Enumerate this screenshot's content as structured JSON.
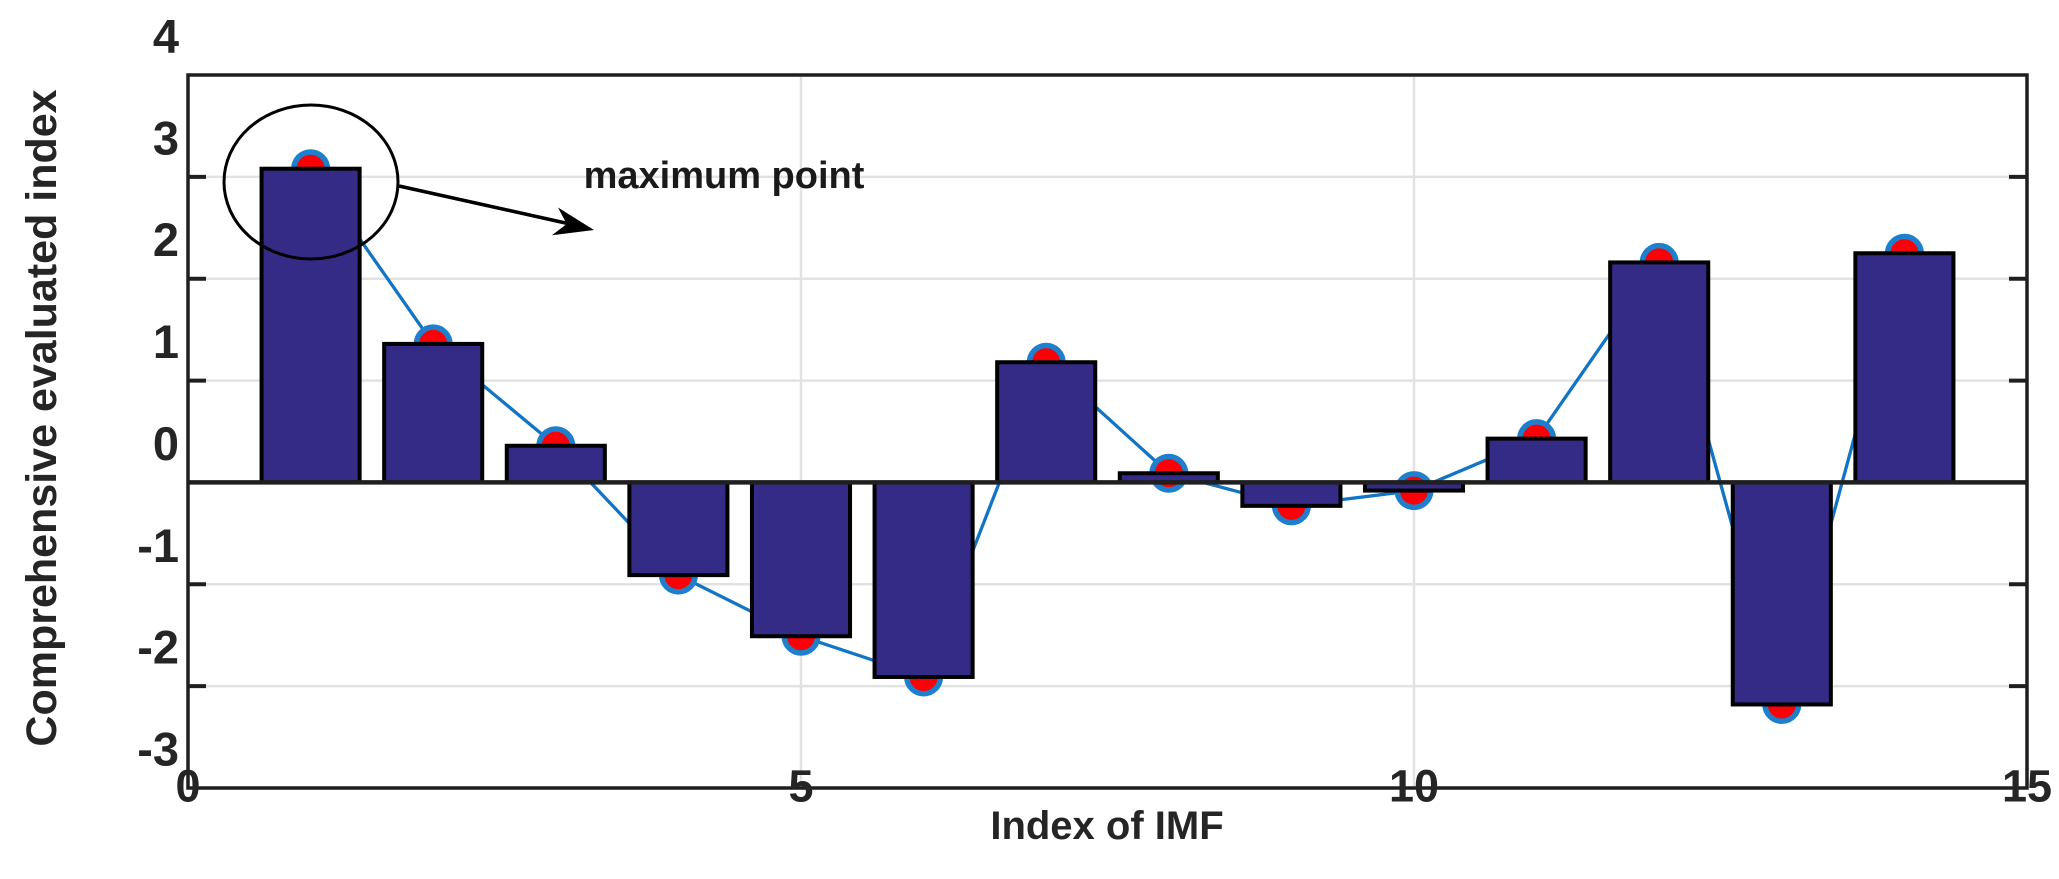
{
  "chart_data": {
    "type": "bar",
    "overlay": "line-with-markers-on-same-data",
    "x": [
      1,
      2,
      3,
      4,
      5,
      6,
      7,
      8,
      9,
      10,
      11,
      12,
      13,
      14
    ],
    "values": [
      3.08,
      1.36,
      0.36,
      -0.91,
      -1.51,
      -1.91,
      1.18,
      0.09,
      -0.23,
      -0.08,
      0.43,
      2.16,
      -2.18,
      2.25
    ],
    "title": "",
    "xlabel": "Index of IMF",
    "ylabel": "Comprehensive evaluated index",
    "xlim": [
      0,
      15
    ],
    "ylim": [
      -3,
      4
    ],
    "xticks": [
      "0",
      "5",
      "10",
      "15"
    ],
    "xtick_values": [
      0,
      5,
      10,
      15
    ],
    "yticks": [
      "4",
      "3",
      "2",
      "1",
      "0",
      "-1",
      "-2",
      "-3"
    ],
    "ytick_values": [
      4,
      3,
      2,
      1,
      0,
      -1,
      -2,
      -3
    ],
    "grid": true,
    "legend": "none",
    "bar_width_units": 0.8,
    "annotation": {
      "text": "maximum point",
      "target_index": 1,
      "shape": "ellipse-around-first-bar-top-with-arrow"
    },
    "colors": {
      "bar_fill": "#342b87",
      "bar_edge": "#000000",
      "line": "#1274c5",
      "marker_fill": "#fb0006",
      "marker_ring": "#1e80cc",
      "grid": "#e2e2e2",
      "axis": "#1f1f1f",
      "text": "#252525",
      "annotation": "#000000",
      "background": "#ffffff"
    }
  }
}
